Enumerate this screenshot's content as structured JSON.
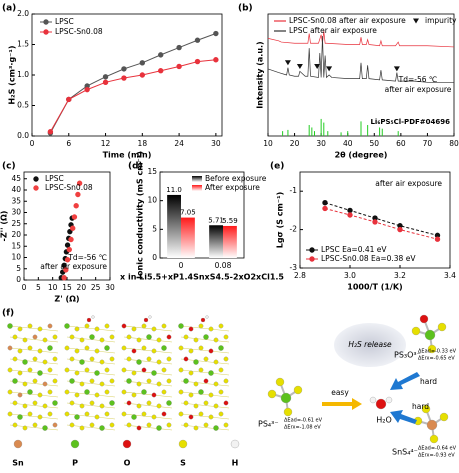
{
  "chart_data": [
    {
      "type": "line",
      "label": "(a)",
      "xlabel": "Time (min)",
      "ylabel": "H₂S (cm³·g⁻¹)",
      "xlim": [
        0,
        31
      ],
      "xticks": [
        0,
        6,
        12,
        18,
        24,
        30
      ],
      "ylim": [
        0,
        2
      ],
      "yticks": [
        {
          "value": 0,
          "label": "0.0"
        },
        0.5,
        {
          "value": 1,
          "label": "1.0"
        },
        1.5,
        {
          "value": 2,
          "label": "2.0"
        }
      ],
      "legend": "upper left",
      "series": [
        {
          "name": "LPSC",
          "color": "#555555",
          "marker": "circle",
          "line": "solid",
          "x": [
            3,
            6,
            9,
            12,
            15,
            18,
            21,
            24,
            27,
            30
          ],
          "values": [
            0.05,
            0.6,
            0.82,
            0.97,
            1.1,
            1.2,
            1.33,
            1.45,
            1.57,
            1.68
          ]
        },
        {
          "name": "LPSC-Sn0.08",
          "color": "#e8323c",
          "marker": "circle",
          "line": "solid",
          "x": [
            3,
            6,
            9,
            12,
            15,
            18,
            21,
            24,
            27,
            30
          ],
          "values": [
            0.07,
            0.6,
            0.76,
            0.88,
            0.95,
            1.0,
            1.07,
            1.14,
            1.22,
            1.25
          ]
        }
      ]
    },
    {
      "type": "line",
      "label": "(b)",
      "xlabel": "2θ (degree)",
      "ylabel": "Intensity (a.u.)",
      "xlim": [
        10,
        80
      ],
      "xticks": [
        10,
        20,
        30,
        40,
        50,
        60,
        70,
        80
      ],
      "ylim": [
        0,
        100
      ],
      "legend": "upper left",
      "annotations": [
        "Td=-56 ℃",
        "after air exposure"
      ],
      "series": [
        {
          "name": "LPSC-Sn0.08 after air exposure",
          "color": "#e8323c",
          "marker": "none",
          "line": "solid",
          "x": [
            10,
            14,
            15,
            20,
            25,
            25.5,
            26,
            29,
            30,
            30.5,
            31,
            31.5,
            32,
            40,
            44.5,
            45,
            45.5,
            47,
            47.5,
            48,
            52,
            52.5,
            53,
            58,
            59,
            59.5,
            65,
            70,
            80
          ],
          "values": [
            80,
            78,
            77,
            76,
            76,
            84,
            76,
            76,
            83,
            76,
            86,
            76,
            76,
            75,
            75,
            81,
            75,
            75,
            79,
            75,
            74,
            78,
            74,
            74,
            77,
            74,
            74,
            74,
            73
          ]
        },
        {
          "name": "LPSC after air exposure",
          "color": "#333333",
          "marker": "none",
          "line": "solid",
          "x": [
            10,
            14,
            17,
            17.5,
            18,
            20,
            21.5,
            22,
            24,
            25,
            25.5,
            26,
            29,
            29.5,
            30,
            30.5,
            31,
            31.5,
            32,
            33,
            34,
            40,
            44.5,
            45,
            45.5,
            47,
            47.5,
            48,
            52,
            52.5,
            53,
            58,
            58.5,
            59,
            65,
            70,
            75,
            80
          ],
          "values": [
            55,
            52,
            50,
            56,
            50,
            49,
            49,
            53,
            49,
            49,
            72,
            49,
            48,
            68,
            48,
            82,
            48,
            66,
            48,
            50,
            48,
            47,
            47,
            60,
            47,
            47,
            58,
            47,
            46,
            54,
            46,
            45,
            52,
            45,
            45,
            44,
            44,
            44
          ]
        },
        {
          "name": "Li₆PS₅Cl-PDF#04696",
          "color": "#22cc22",
          "marker": "stick",
          "line": "none",
          "x": [
            15.5,
            17.5,
            25.5,
            26.5,
            27.5,
            30,
            31,
            32.5,
            37.5,
            40,
            45,
            47.5,
            52,
            53,
            59
          ],
          "values": [
            4,
            5,
            9,
            7,
            4,
            14,
            11,
            4,
            3,
            4,
            12,
            9,
            7,
            6,
            4
          ]
        },
        {
          "name": "impurity",
          "color": "#111111",
          "marker": "triangle",
          "line": "none",
          "x": [
            17.5,
            22,
            28.5,
            33,
            58.5
          ],
          "values": [
            60,
            57,
            57,
            55,
            55
          ]
        }
      ]
    },
    {
      "type": "scatter",
      "label": "(c)",
      "xlabel": "Z' (Ω)",
      "ylabel": "-Z'' (Ω)",
      "xlim": [
        0,
        30
      ],
      "xticks": [
        0,
        5,
        10,
        15,
        20,
        25,
        30
      ],
      "ylim": [
        0,
        48
      ],
      "yticks": [
        0,
        5,
        10,
        15,
        20,
        25,
        30,
        35,
        40,
        45
      ],
      "legend": "upper left",
      "annotations": [
        "Td=-56 ℃",
        "after air exposure"
      ],
      "series": [
        {
          "name": "LPSC",
          "color": "#111111",
          "marker": "circle",
          "line": "none",
          "x": [
            13,
            13.5,
            14,
            14.4,
            14.8,
            15.2,
            15.6,
            16,
            16.4,
            16.8
          ],
          "values": [
            1,
            3.5,
            6.5,
            9.5,
            12.5,
            15.5,
            18.5,
            21.5,
            24.5,
            27.5
          ]
        },
        {
          "name": "LPSC-Sn0.08",
          "color": "#f04040",
          "marker": "circle",
          "line": "none",
          "x": [
            14,
            14.6,
            15.2,
            15.8,
            16.4,
            17,
            17.6,
            18.2,
            18.8,
            19.4
          ],
          "values": [
            1,
            4.5,
            9,
            13.5,
            18,
            23,
            28,
            33,
            38,
            43
          ]
        }
      ]
    },
    {
      "type": "bar",
      "label": "(d)",
      "xlabel": "x in Li5.5+xP1.4SnxS4.5-2xO2xCl1.5",
      "ylabel": "Ionic conductivity (mS cm⁻¹)",
      "categories": [
        "0",
        "0.08"
      ],
      "ylim": [
        0,
        15
      ],
      "yticks": [
        0,
        5,
        10,
        15
      ],
      "legend": "upper right",
      "series": [
        {
          "name": "Before exposure",
          "color": "#000000",
          "values": [
            11.0,
            5.71
          ],
          "value_labels": [
            "11.0",
            "5.71"
          ]
        },
        {
          "name": "After exposure",
          "color": "#ff1a1a",
          "values": [
            7.05,
            5.59
          ],
          "value_labels": [
            "7.05",
            "5.59"
          ]
        }
      ]
    },
    {
      "type": "scatter",
      "label": "(e)",
      "xlabel": "1000/T (1/K)",
      "ylabel": "Lgσ (S cm⁻¹)",
      "xlim": [
        2.8,
        3.4
      ],
      "xticks": [
        2.8,
        {
          "value": 3,
          "label": "3.0"
        },
        3.2,
        3.4
      ],
      "ylim": [
        -3,
        -0.5
      ],
      "yticks": [
        -3,
        -2,
        -1
      ],
      "legend": "lower left",
      "annotations": [
        "after air exposure"
      ],
      "series": [
        {
          "name": "LPSC  Ea=0.41 eV",
          "color": "#111111",
          "marker": "circle",
          "line": "dashed",
          "x": [
            2.9,
            3.0,
            3.1,
            3.2,
            3.35
          ],
          "values": [
            -1.3,
            -1.5,
            -1.7,
            -1.9,
            -2.15
          ]
        },
        {
          "name": "LPSC-Sn0.08  Ea=0.38 eV",
          "color": "#e8323c",
          "marker": "circle",
          "line": "dashed",
          "x": [
            2.9,
            3.0,
            3.1,
            3.2,
            3.35
          ],
          "values": [
            -1.45,
            -1.62,
            -1.8,
            -2.0,
            -2.25
          ]
        }
      ]
    }
  ],
  "diagram": {
    "label": "(f)",
    "elements": [
      "Sn",
      "P",
      "O",
      "S",
      "H"
    ],
    "cloud": "H₂S release",
    "water": "H₂O",
    "easy": "easy",
    "hard": [
      "hard",
      "hard"
    ],
    "species": [
      {
        "name": "PS₄³⁻",
        "ad": "ΔEad=-0.61 eV",
        "rx": "ΔErx=-1.08 eV"
      },
      {
        "name": "PS₃O³⁻",
        "ad": "ΔEad=-0.33 eV",
        "rx": "ΔErx=-0.65 eV"
      },
      {
        "name": "SnS₄⁴⁻",
        "ad": "ΔEad=-0.64 eV",
        "rx": "ΔErx=-0.93 eV"
      }
    ]
  }
}
